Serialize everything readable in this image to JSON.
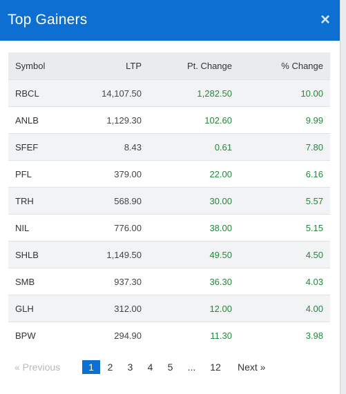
{
  "modal": {
    "title": "Top Gainers",
    "close_label": "×"
  },
  "table": {
    "headers": {
      "symbol": "Symbol",
      "ltp": "LTP",
      "pt_change": "Pt. Change",
      "pct_change": "% Change"
    },
    "rows": [
      {
        "symbol": "RBCL",
        "ltp": "14,107.50",
        "pt_change": "1,282.50",
        "pct_change": "10.00"
      },
      {
        "symbol": "ANLB",
        "ltp": "1,129.30",
        "pt_change": "102.60",
        "pct_change": "9.99"
      },
      {
        "symbol": "SFEF",
        "ltp": "8.43",
        "pt_change": "0.61",
        "pct_change": "7.80"
      },
      {
        "symbol": "PFL",
        "ltp": "379.00",
        "pt_change": "22.00",
        "pct_change": "6.16"
      },
      {
        "symbol": "TRH",
        "ltp": "568.90",
        "pt_change": "30.00",
        "pct_change": "5.57"
      },
      {
        "symbol": "NIL",
        "ltp": "776.00",
        "pt_change": "38.00",
        "pct_change": "5.15"
      },
      {
        "symbol": "SHLB",
        "ltp": "1,149.50",
        "pt_change": "49.50",
        "pct_change": "4.50"
      },
      {
        "symbol": "SMB",
        "ltp": "937.30",
        "pt_change": "36.30",
        "pct_change": "4.03"
      },
      {
        "symbol": "GLH",
        "ltp": "312.00",
        "pt_change": "12.00",
        "pct_change": "4.00"
      },
      {
        "symbol": "BPW",
        "ltp": "294.90",
        "pt_change": "11.30",
        "pct_change": "3.98"
      }
    ]
  },
  "pagination": {
    "prev_label": "« Previous",
    "pages": [
      "1",
      "2",
      "3",
      "4",
      "5",
      "...",
      "12"
    ],
    "active_page": "1",
    "next_label": "Next »"
  },
  "colors": {
    "header_bg": "#0d6fd1",
    "positive": "#218838",
    "active_page": "#0d6fd1"
  }
}
